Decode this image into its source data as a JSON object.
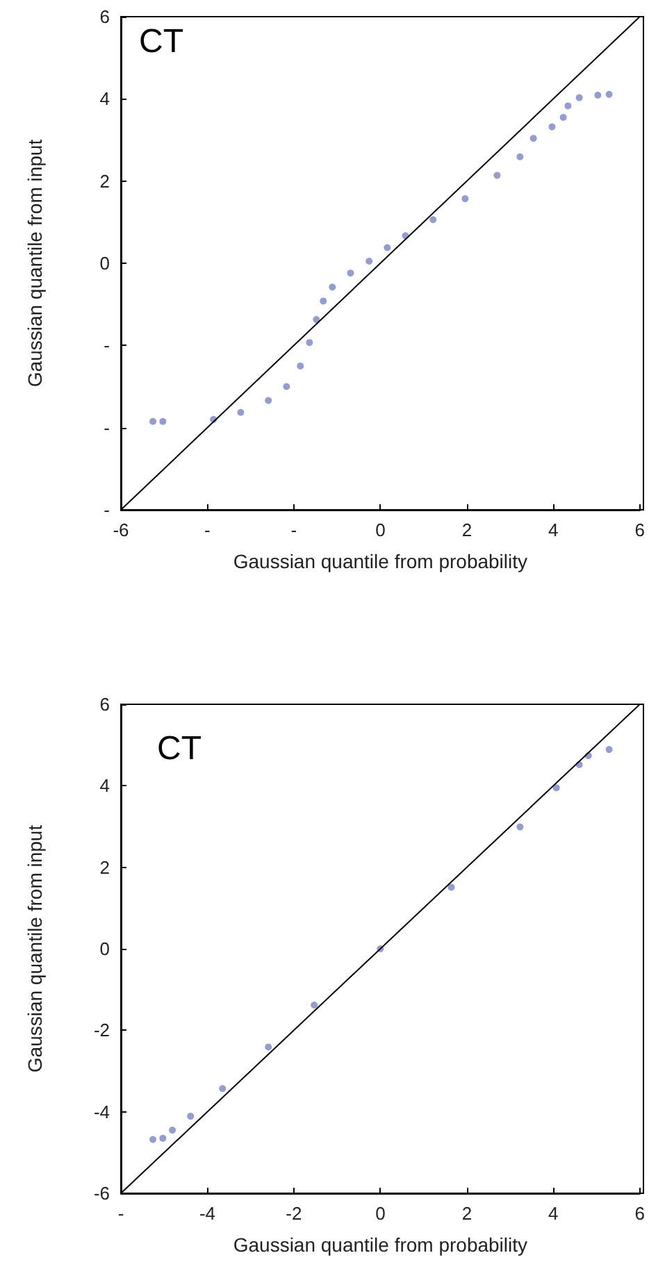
{
  "chart_data": [
    {
      "type": "scatter",
      "xlabel": "Gaussian quantile from probability",
      "ylabel": "Gaussian quantile from input",
      "annotations": [
        "CT"
      ],
      "grid": false,
      "xlim": [
        -6,
        6
      ],
      "xticks": [
        -6,
        {
          "value": -4,
          "label": "-"
        },
        {
          "value": -2,
          "label": "-"
        },
        0,
        2,
        4,
        6
      ],
      "ylim": [
        -6,
        6
      ],
      "yticks": [
        {
          "value": -6,
          "label": "-"
        },
        {
          "value": -4,
          "label": "-"
        },
        {
          "value": -2,
          "label": "-"
        },
        0,
        2,
        4,
        6
      ],
      "series": [
        {
          "marker": "circle",
          "color": "#7b83c4",
          "x": [
            -5.26,
            -5.03,
            -3.86,
            -3.23,
            -2.59,
            -2.17,
            -1.85,
            -1.64,
            -1.48,
            -1.32,
            -1.11,
            -0.69,
            -0.26,
            0.16,
            0.58,
            1.22,
            1.96,
            2.7,
            3.23,
            3.54,
            3.97,
            4.23,
            4.34,
            4.6,
            5.03,
            5.29
          ],
          "values": [
            -3.85,
            -3.85,
            -3.8,
            -3.63,
            -3.34,
            -3.0,
            -2.5,
            -1.93,
            -1.37,
            -0.92,
            -0.58,
            -0.24,
            0.05,
            0.38,
            0.67,
            1.06,
            1.57,
            2.14,
            2.59,
            3.04,
            3.32,
            3.55,
            3.83,
            4.03,
            4.09,
            4.11
          ]
        },
        {
          "type": "line",
          "marker": "none",
          "line_style": "solid",
          "color": "#000000",
          "x": [
            -6,
            6
          ],
          "values": [
            -6,
            6
          ]
        }
      ]
    },
    {
      "type": "scatter",
      "xlabel": "Gaussian quantile from probability",
      "ylabel": "Gaussian quantile from input",
      "annotations": [
        "CT"
      ],
      "grid": false,
      "xlim": [
        -6,
        6
      ],
      "xticks": [
        {
          "value": -6,
          "label": "-"
        },
        -4,
        -2,
        0,
        2,
        4,
        6
      ],
      "ylim": [
        -6,
        6
      ],
      "yticks": [
        -6,
        -4,
        -2,
        0,
        2,
        4,
        6
      ],
      "series": [
        {
          "marker": "circle",
          "color": "#7b83c4",
          "x": [
            -5.26,
            -5.03,
            -4.81,
            -4.39,
            -3.65,
            -2.59,
            -1.53,
            0,
            1.64,
            3.23,
            4.07,
            4.6,
            4.81,
            5.29
          ],
          "values": [
            -4.68,
            -4.65,
            -4.45,
            -4.11,
            -3.43,
            -2.41,
            -1.38,
            0,
            1.51,
            2.99,
            3.95,
            4.52,
            4.74,
            4.89
          ]
        },
        {
          "type": "line",
          "marker": "none",
          "line_style": "solid",
          "color": "#000000",
          "x": [
            -6,
            6
          ],
          "values": [
            -6,
            6
          ]
        }
      ]
    }
  ]
}
